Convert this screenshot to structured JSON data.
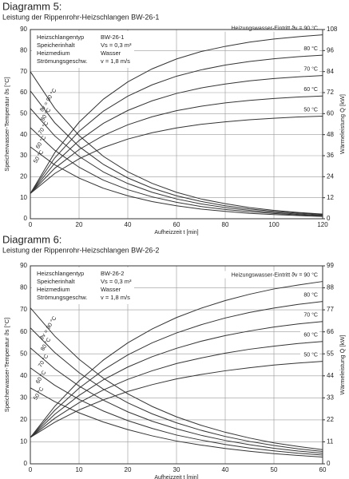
{
  "chart_data": [
    {
      "type": "line",
      "title": "Diagramm 5:",
      "subtitle": "Leistung der Rippenrohr-Heizschlangen BW-26-1",
      "xlabel": "Aufheizzeit t [min]",
      "ylabel": "Speicherwasser-Temperatur ϑs [°C]",
      "y2label": "Wärmeleistung Q̇ [kW]",
      "info": [
        [
          "Heizschlangentyp",
          "BW-26-1"
        ],
        [
          "Speicherinhalt",
          "Vs = 0,3 m³"
        ],
        [
          "Heizmedium",
          "Wasser"
        ],
        [
          "Strömungsgeschw.",
          "v = 1,8 m/s"
        ]
      ],
      "x": [
        0,
        10,
        20,
        30,
        40,
        50,
        60,
        70,
        80,
        90,
        100,
        110,
        120
      ],
      "xlim": [
        0,
        120
      ],
      "xticks": [
        0,
        20,
        40,
        60,
        80,
        100,
        120
      ],
      "ylim": [
        0,
        90
      ],
      "yticks": [
        0,
        10,
        20,
        30,
        40,
        50,
        60,
        70,
        80,
        90
      ],
      "y2lim": [
        0,
        108
      ],
      "y2ticks": [
        0,
        12,
        24,
        36,
        48,
        60,
        72,
        84,
        96,
        108
      ],
      "grid": true,
      "series": [
        {
          "name": "Heizungswasser-Eintritt ϑv = 90 °C",
          "color": "#333333",
          "values": [
            12,
            31.4,
            45.9,
            56.9,
            65.1,
            71.3,
            76.0,
            79.5,
            82.0,
            84.0,
            85.5,
            86.6,
            87.5
          ]
        },
        {
          "name": "80 °C",
          "color": "#333333",
          "values": [
            12,
            28.9,
            41.6,
            51.2,
            58.3,
            63.7,
            67.8,
            70.8,
            73.1,
            74.8,
            76.1,
            77.1,
            77.8
          ]
        },
        {
          "name": "70 °C",
          "color": "#333333",
          "values": [
            12,
            26.4,
            37.2,
            45.4,
            51.5,
            56.1,
            59.6,
            62.2,
            64.1,
            65.6,
            66.7,
            67.5,
            68.1
          ]
        },
        {
          "name": "60 °C",
          "color": "#333333",
          "values": [
            12,
            24.0,
            32.9,
            39.6,
            44.7,
            48.5,
            51.4,
            53.5,
            55.1,
            56.3,
            57.2,
            57.9,
            58.4
          ]
        },
        {
          "name": "50 °C",
          "color": "#333333",
          "values": [
            12,
            21.5,
            28.5,
            33.9,
            37.9,
            40.9,
            43.2,
            44.9,
            46.1,
            47.1,
            47.8,
            48.4,
            48.8
          ]
        },
        {
          "name": "ϑv = 90 °C",
          "color": "#333333",
          "axis": "y2",
          "values": [
            84,
            63.1,
            47.5,
            35.6,
            26.8,
            20.2,
            15.1,
            11.3,
            8.6,
            6.4,
            4.8,
            3.6,
            2.7
          ]
        },
        {
          "name": "80 °C",
          "color": "#333333",
          "axis": "y2",
          "values": [
            73,
            54.8,
            41.2,
            31.0,
            23.3,
            17.5,
            13.1,
            9.9,
            7.4,
            5.6,
            4.2,
            3.2,
            2.4
          ]
        },
        {
          "name": "70 °C",
          "color": "#333333",
          "axis": "y2",
          "values": [
            63,
            47.3,
            35.6,
            26.7,
            20.1,
            15.1,
            11.3,
            8.5,
            6.4,
            4.8,
            3.6,
            2.7,
            2.0
          ]
        },
        {
          "name": "60 °C",
          "color": "#333333",
          "axis": "y2",
          "values": [
            52,
            39.1,
            29.4,
            22.0,
            16.6,
            12.5,
            9.4,
            7.0,
            5.3,
            4.0,
            3.0,
            2.2,
            1.7
          ]
        },
        {
          "name": "50 °C",
          "color": "#333333",
          "axis": "y2",
          "values": [
            41,
            30.8,
            23.2,
            17.4,
            13.1,
            9.8,
            7.4,
            5.5,
            4.2,
            3.1,
            2.4,
            1.8,
            1.3
          ]
        }
      ]
    },
    {
      "type": "line",
      "title": "Diagramm 6:",
      "subtitle": "Leistung der Rippenrohr-Heizschlangen BW-26-2",
      "xlabel": "Aufheizzeit t [min]",
      "ylabel": "Speicherwasser-Temperatur ϑs [°C]",
      "y2label": "Wärmeleistung Q̇ [kW]",
      "info": [
        [
          "Heizschlangentyp",
          "BW-26-2"
        ],
        [
          "Speicherinhalt",
          "Vs = 0,3 m³"
        ],
        [
          "Heizmedium",
          "Wasser"
        ],
        [
          "Strömungsgeschw.",
          "v = 1,8 m/s"
        ]
      ],
      "x": [
        0,
        5,
        10,
        15,
        20,
        25,
        30,
        35,
        40,
        45,
        50,
        55,
        60
      ],
      "xlim": [
        0,
        60
      ],
      "xticks": [
        0,
        10,
        20,
        30,
        40,
        50,
        60
      ],
      "ylim": [
        0,
        90
      ],
      "yticks": [
        0,
        10,
        20,
        30,
        40,
        50,
        60,
        70,
        80,
        90
      ],
      "y2lim": [
        0,
        99
      ],
      "y2ticks": [
        0,
        11,
        22,
        33,
        44,
        55,
        66,
        77,
        88,
        99
      ],
      "grid": true,
      "series": [
        {
          "name": "Heizungswasser-Eintritt ϑv = 90 °C",
          "color": "#333333",
          "values": [
            12,
            26.1,
            37.7,
            47.2,
            55.0,
            61.3,
            66.5,
            70.7,
            74.2,
            77.1,
            79.5,
            81.3,
            82.9
          ]
        },
        {
          "name": "80 °C",
          "color": "#333333",
          "values": [
            12,
            24.3,
            34.4,
            42.7,
            49.5,
            55.0,
            59.5,
            63.2,
            66.3,
            68.8,
            70.8,
            72.5,
            73.8
          ]
        },
        {
          "name": "70 °C",
          "color": "#333333",
          "values": [
            12,
            22.5,
            31.1,
            38.2,
            44.0,
            48.7,
            52.5,
            55.7,
            58.3,
            60.4,
            62.2,
            63.6,
            64.7
          ]
        },
        {
          "name": "60 °C",
          "color": "#333333",
          "values": [
            12,
            20.7,
            27.8,
            33.6,
            38.4,
            42.3,
            45.6,
            48.1,
            50.3,
            52.1,
            53.5,
            54.7,
            55.6
          ]
        },
        {
          "name": "50 °C",
          "color": "#333333",
          "values": [
            12,
            18.9,
            24.5,
            29.1,
            32.9,
            36.0,
            38.6,
            40.6,
            42.3,
            43.7,
            44.9,
            45.8,
            46.6
          ]
        },
        {
          "name": "ϑv = 90 °C",
          "color": "#333333",
          "axis": "y2",
          "values": [
            78,
            63.9,
            52.3,
            42.8,
            35.0,
            28.7,
            23.5,
            19.3,
            15.8,
            12.9,
            10.5,
            8.7,
            7.1
          ]
        },
        {
          "name": "80 °C",
          "color": "#333333",
          "axis": "y2",
          "values": [
            68,
            55.7,
            45.6,
            37.3,
            30.5,
            25.0,
            20.5,
            16.8,
            13.7,
            11.2,
            9.2,
            7.5,
            6.2
          ]
        },
        {
          "name": "70 °C",
          "color": "#333333",
          "axis": "y2",
          "values": [
            58,
            47.5,
            38.9,
            31.8,
            26.0,
            21.3,
            17.5,
            14.3,
            11.7,
            9.6,
            7.8,
            6.4,
            5.3
          ]
        },
        {
          "name": "60 °C",
          "color": "#333333",
          "axis": "y2",
          "values": [
            48,
            39.3,
            32.2,
            26.4,
            21.6,
            17.7,
            14.4,
            11.9,
            9.7,
            7.9,
            6.5,
            5.3,
            4.4
          ]
        },
        {
          "name": "50 °C",
          "color": "#333333",
          "axis": "y2",
          "values": [
            38,
            31.1,
            25.5,
            20.9,
            17.1,
            14.0,
            11.4,
            9.4,
            7.7,
            6.3,
            5.1,
            4.2,
            3.4
          ]
        }
      ]
    }
  ]
}
